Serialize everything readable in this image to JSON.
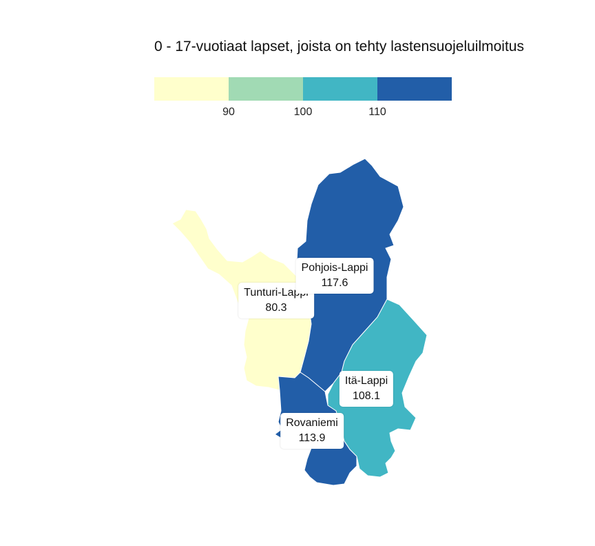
{
  "title": "0 - 17-vuotiaat lapset, joista on tehty lastensuojeluilmoitus",
  "legend": {
    "colors": [
      "#ffffcc",
      "#a1dab4",
      "#41b6c4",
      "#225ea8"
    ],
    "ticks": [
      "90",
      "100",
      "110"
    ]
  },
  "regions": [
    {
      "name": "Tunturi-Lappi",
      "value": "80.3",
      "color": "#ffffcc"
    },
    {
      "name": "Pohjois-Lappi",
      "value": "117.6",
      "color": "#225ea8"
    },
    {
      "name": "Itä-Lappi",
      "value": "108.1",
      "color": "#41b6c4"
    },
    {
      "name": "Rovaniemi",
      "value": "113.9",
      "color": "#225ea8"
    }
  ]
}
